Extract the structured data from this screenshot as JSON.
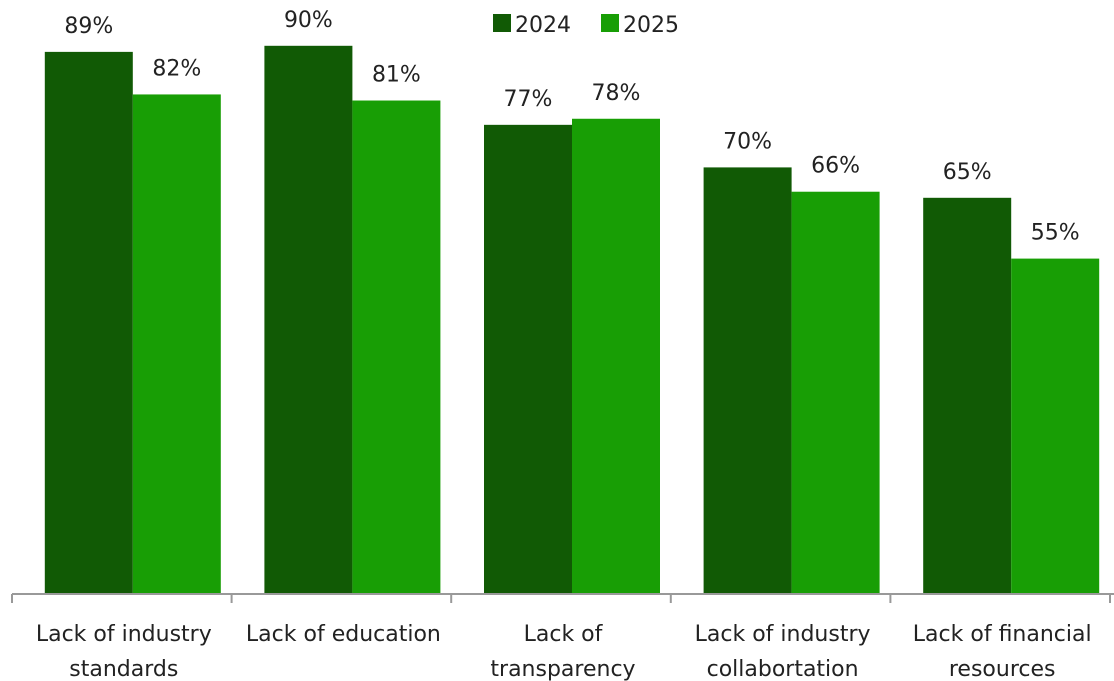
{
  "chart_data": {
    "type": "bar",
    "categories": [
      [
        "Lack of industry",
        "standards"
      ],
      [
        "Lack of education"
      ],
      [
        "Lack of",
        "transparency"
      ],
      [
        "Lack of industry",
        "collabortation"
      ],
      [
        "Lack of financial",
        "resources"
      ]
    ],
    "series": [
      {
        "name": "2024",
        "color": "#115a05",
        "values": [
          89,
          90,
          77,
          70,
          65
        ],
        "labels": [
          "89%",
          "90%",
          "77%",
          "70%",
          "65%"
        ]
      },
      {
        "name": "2025",
        "color": "#189e05",
        "values": [
          82,
          81,
          78,
          66,
          55
        ],
        "labels": [
          "82%",
          "81%",
          "78%",
          "66%",
          "55%"
        ]
      }
    ],
    "ylim": [
      0,
      100
    ],
    "grid": false,
    "legend_position": "top-center"
  }
}
